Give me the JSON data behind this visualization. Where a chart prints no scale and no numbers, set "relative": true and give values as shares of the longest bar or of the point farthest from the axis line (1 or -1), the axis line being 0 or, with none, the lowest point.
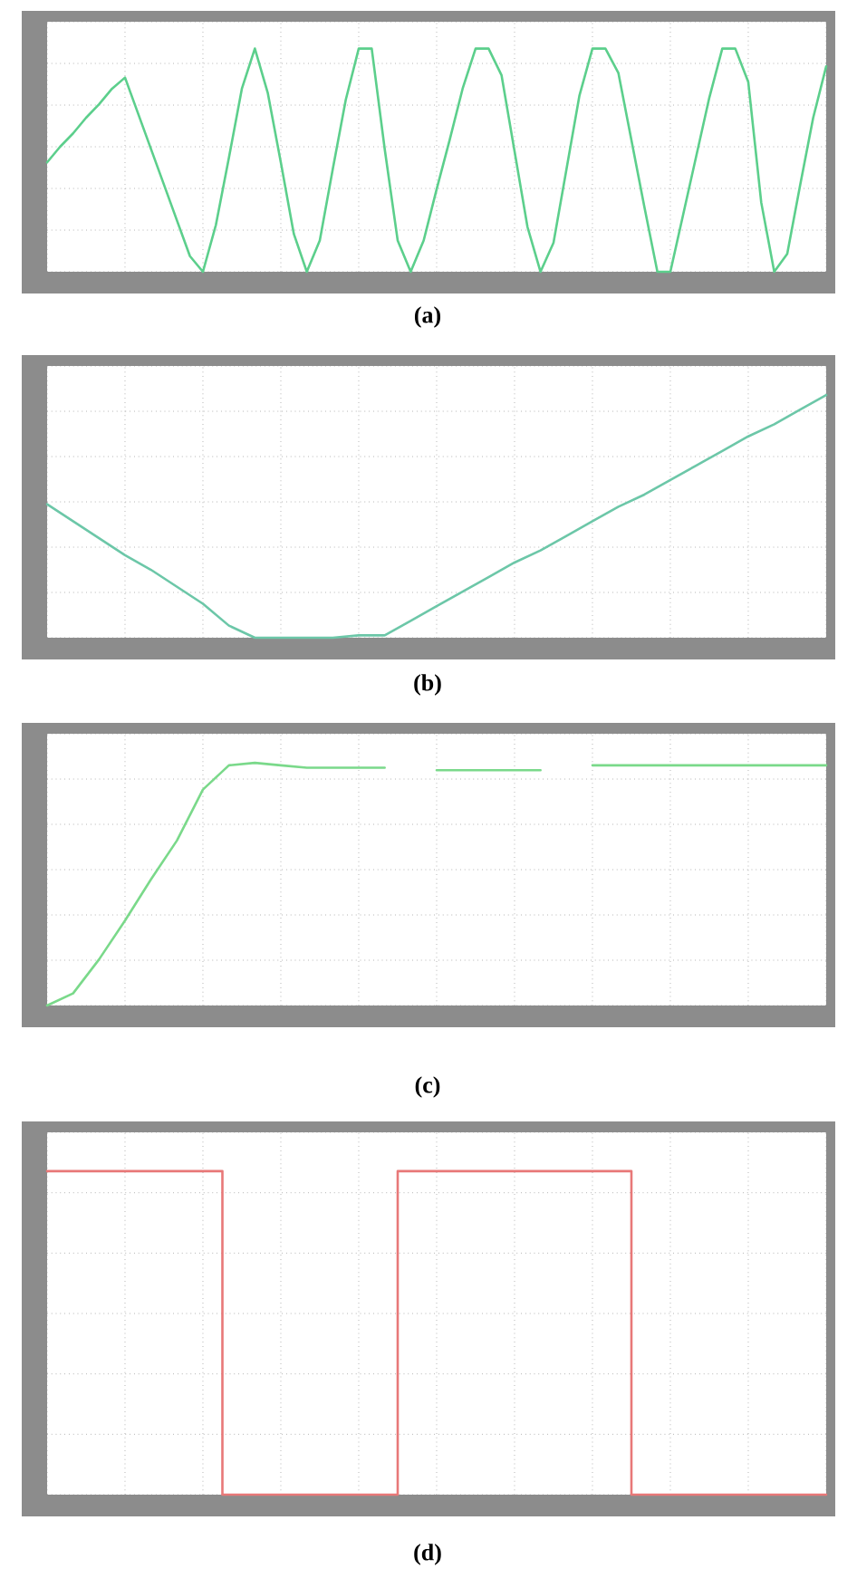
{
  "chart_data": [
    {
      "type": "line",
      "relative": true,
      "grid": true,
      "color": "#5ccf8c",
      "annotations": [
        "(a)"
      ],
      "categories": [
        null,
        null,
        null,
        null,
        null,
        null,
        null,
        null,
        null,
        null,
        null,
        null,
        null,
        null,
        null,
        null,
        null,
        null,
        null,
        null,
        null,
        null,
        null,
        null,
        null,
        null,
        null,
        null,
        null,
        null,
        null,
        null,
        null,
        null,
        null,
        null,
        null,
        null,
        null,
        null,
        null,
        null,
        null,
        null,
        null,
        null,
        null,
        null,
        null,
        null,
        null,
        null,
        null,
        null,
        null,
        null,
        null,
        null,
        null,
        null,
        null
      ],
      "values": [
        0.49,
        0.56,
        0.62,
        0.69,
        0.75,
        0.82,
        0.87,
        0.71,
        0.55,
        0.39,
        0.23,
        0.07,
        0,
        0.21,
        0.51,
        0.82,
        1,
        0.8,
        0.49,
        0.17,
        0,
        0.14,
        0.46,
        0.77,
        1,
        1,
        0.55,
        0.14,
        0,
        0.14,
        0.37,
        0.59,
        0.82,
        1,
        1,
        0.88,
        0.54,
        0.2,
        0,
        0.13,
        0.46,
        0.79,
        1,
        1,
        0.89,
        0.59,
        0.29,
        0,
        0,
        0.26,
        0.52,
        0.78,
        1,
        1,
        0.85,
        0.31,
        0,
        0.08,
        0.39,
        0.69,
        0.92
      ]
    },
    {
      "type": "line",
      "relative": true,
      "grid": true,
      "color": "#6cc7a8",
      "annotations": [
        "(b)"
      ],
      "categories": [
        null,
        null,
        null,
        null,
        null,
        null,
        null,
        null,
        null,
        null,
        null,
        null,
        null,
        null,
        null,
        null,
        null,
        null,
        null,
        null,
        null,
        null,
        null,
        null,
        null,
        null,
        null,
        null,
        null,
        null,
        null
      ],
      "values": [
        0.55,
        0.48,
        0.41,
        0.34,
        0.28,
        0.21,
        0.14,
        0.05,
        0,
        0,
        0,
        0,
        0.01,
        0.01,
        0.07,
        0.13,
        0.19,
        0.25,
        0.31,
        0.36,
        0.42,
        0.48,
        0.54,
        0.59,
        0.65,
        0.71,
        0.77,
        0.83,
        0.88,
        0.94,
        1
      ]
    },
    {
      "type": "line",
      "relative": true,
      "grid": true,
      "color": "#7ad98a",
      "annotations": [
        "(c)"
      ],
      "categories": [
        null,
        null,
        null,
        null,
        null,
        null,
        null,
        null,
        null,
        null,
        null,
        null,
        null,
        null,
        null,
        null,
        null,
        null,
        null,
        null,
        null,
        null,
        null,
        null,
        null,
        null,
        null,
        null,
        null,
        null,
        null
      ],
      "values": [
        0,
        0.05,
        0.19,
        0.35,
        0.52,
        0.68,
        0.89,
        0.99,
        1,
        0.99,
        0.98,
        0.98,
        0.98,
        0.98,
        null,
        0.97,
        0.97,
        0.97,
        0.97,
        0.97,
        null,
        0.99,
        0.99,
        0.99,
        0.99,
        0.99,
        0.99,
        0.99,
        0.99,
        0.99,
        0.99
      ]
    },
    {
      "type": "step",
      "relative": true,
      "grid": true,
      "color": "#e87878",
      "annotations": [
        "(d)"
      ],
      "categories": [
        null,
        null,
        null,
        null,
        null,
        null,
        null,
        null,
        null,
        null,
        null,
        null,
        null,
        null,
        null,
        null,
        null,
        null,
        null,
        null,
        null,
        null,
        null,
        null,
        null,
        null,
        null,
        null,
        null,
        null,
        null,
        null,
        null,
        null,
        null,
        null,
        null,
        null,
        null,
        null,
        null
      ],
      "values": [
        1,
        1,
        1,
        1,
        1,
        1,
        1,
        1,
        1,
        0,
        0,
        0,
        0,
        0,
        0,
        0,
        0,
        0,
        1,
        1,
        1,
        1,
        1,
        1,
        1,
        1,
        1,
        1,
        1,
        1,
        0,
        0,
        0,
        0,
        0,
        0,
        0,
        0,
        0,
        0,
        0
      ]
    }
  ]
}
